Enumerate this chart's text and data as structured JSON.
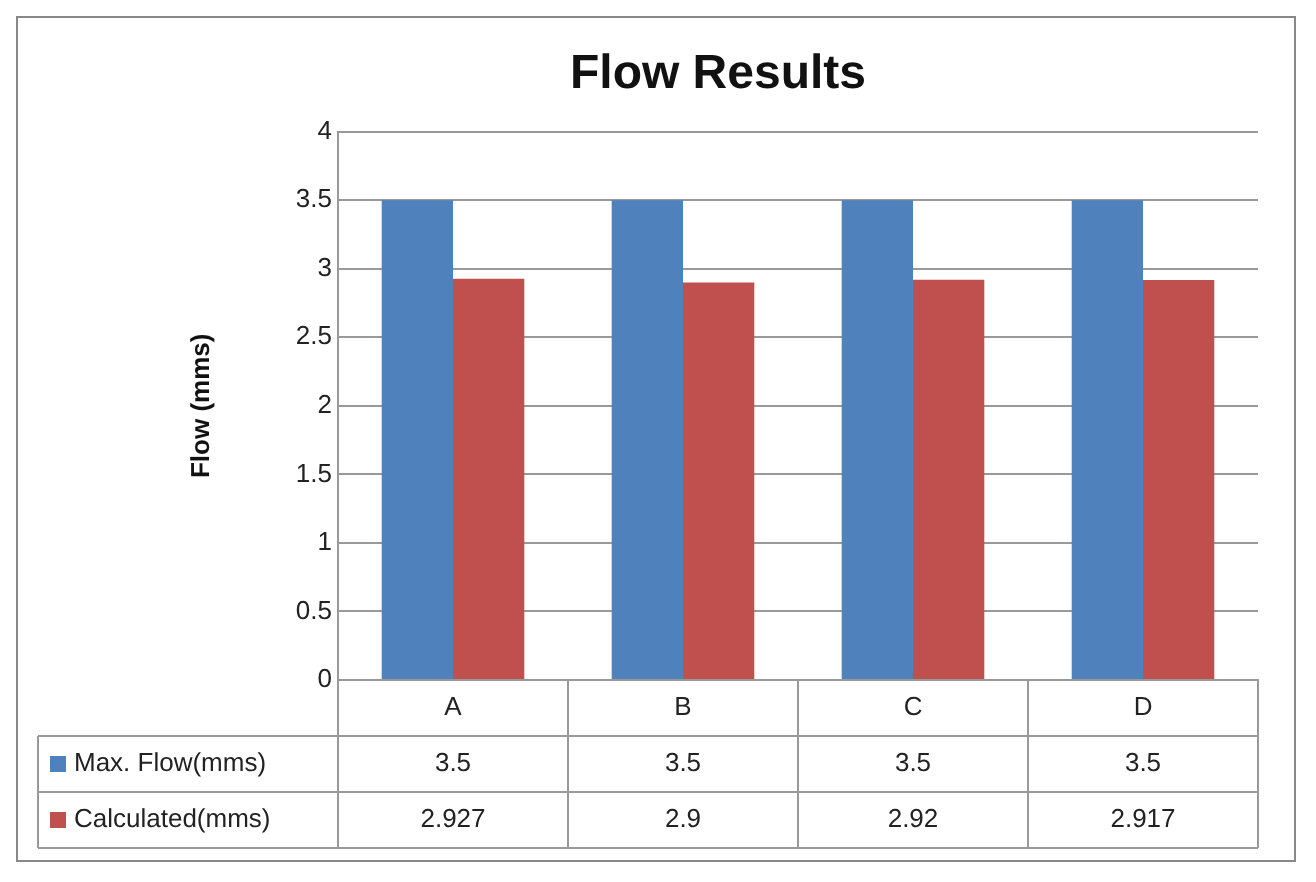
{
  "chart_data": {
    "type": "bar",
    "title": "Flow Results",
    "ylabel": "Flow (mms)",
    "categories": [
      "A",
      "B",
      "C",
      "D"
    ],
    "series": [
      {
        "name": "Max. Flow(mms)",
        "color": "#4f81bd",
        "values": [
          3.5,
          3.5,
          3.5,
          3.5
        ]
      },
      {
        "name": "Calculated(mms)",
        "color": "#c0504d",
        "values": [
          2.927,
          2.9,
          2.92,
          2.917
        ]
      }
    ],
    "ylim": [
      0,
      4
    ],
    "yticks": [
      0,
      0.5,
      1,
      1.5,
      2,
      2.5,
      3,
      3.5,
      4
    ],
    "grid": "y",
    "legend": "bottom",
    "data_labels": true
  }
}
